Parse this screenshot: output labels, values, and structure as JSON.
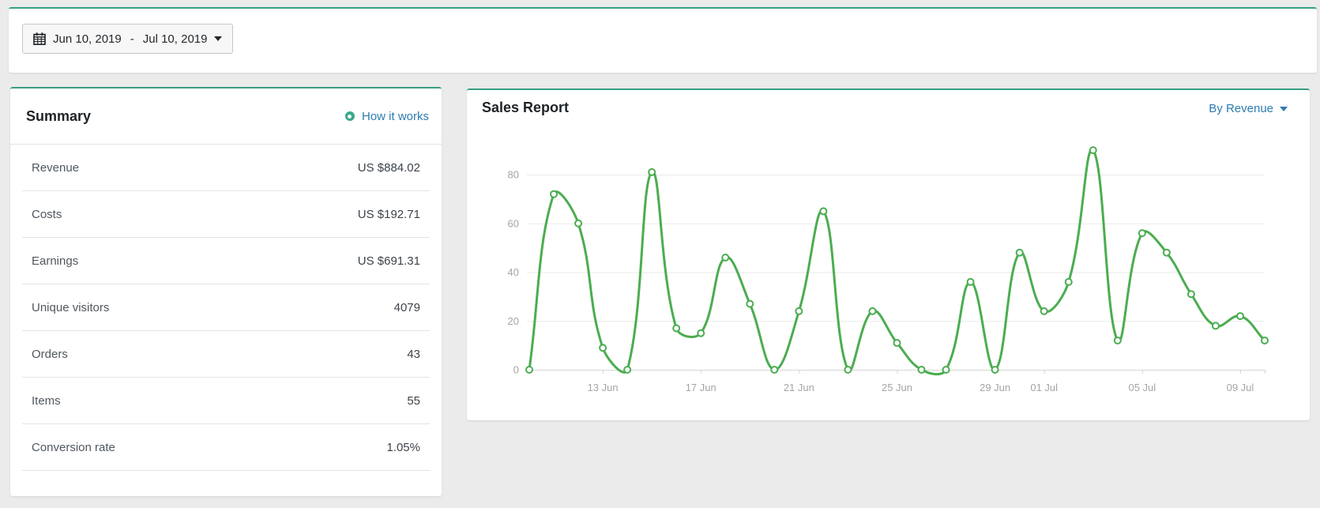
{
  "toolbar": {
    "date_range": {
      "start": "Jun 10, 2019",
      "separator": "-",
      "end": "Jul 10, 2019"
    }
  },
  "summary": {
    "title": "Summary",
    "how_it_works_label": "How it works",
    "rows": [
      {
        "label": "Revenue",
        "value": "US $884.02"
      },
      {
        "label": "Costs",
        "value": "US $192.71"
      },
      {
        "label": "Earnings",
        "value": "US $691.31"
      },
      {
        "label": "Unique visitors",
        "value": "4079"
      },
      {
        "label": "Orders",
        "value": "43"
      },
      {
        "label": "Items",
        "value": "55"
      },
      {
        "label": "Conversion rate",
        "value": "1.05%"
      }
    ]
  },
  "sales_report": {
    "title": "Sales Report",
    "filter_label": "By Revenue"
  },
  "chart_data": {
    "type": "line",
    "title": "Sales Report",
    "series_name": "By Revenue",
    "x": [
      "Jun 10",
      "Jun 11",
      "Jun 12",
      "Jun 13",
      "Jun 14",
      "Jun 15",
      "Jun 16",
      "Jun 17",
      "Jun 18",
      "Jun 19",
      "Jun 20",
      "Jun 21",
      "Jun 22",
      "Jun 23",
      "Jun 24",
      "Jun 25",
      "Jun 26",
      "Jun 27",
      "Jun 28",
      "Jun 29",
      "Jun 30",
      "Jul 01",
      "Jul 02",
      "Jul 03",
      "Jul 04",
      "Jul 05",
      "Jul 06",
      "Jul 07",
      "Jul 08",
      "Jul 09",
      "Jul 10"
    ],
    "values": [
      0,
      72,
      60,
      9,
      0,
      81,
      17,
      15,
      46,
      27,
      0,
      24,
      65,
      0,
      24,
      11,
      0,
      0,
      36,
      0,
      48,
      24,
      36,
      90,
      12,
      56,
      48,
      31,
      18,
      22,
      12
    ],
    "x_tick_labels": [
      "13 Jun",
      "17 Jun",
      "21 Jun",
      "25 Jun",
      "29 Jun",
      "01 Jul",
      "05 Jul",
      "09 Jul"
    ],
    "x_tick_indices": [
      3,
      7,
      11,
      15,
      19,
      21,
      25,
      29
    ],
    "y_ticks": [
      0,
      20,
      40,
      60,
      80
    ],
    "ylim": [
      0,
      90
    ],
    "grid": true,
    "legend": "none",
    "line_color": "#4bad50",
    "point_fill": "#ffffff",
    "curve_tension": 0.4
  },
  "colors": {
    "card_accent": "#37a084",
    "link_blue": "#2c7cb0",
    "chart_line": "#4bad50",
    "grid_line": "#eaeaea",
    "axis_line": "#d6d6d6",
    "tick_text": "#a5a5a5",
    "page_background": "#ebebeb"
  },
  "icons": {
    "date_picker": "calendar-icon",
    "date_picker_caret": "caret-down-icon",
    "how_it_works": "dot-circle-icon",
    "filter_caret": "caret-down-icon"
  }
}
